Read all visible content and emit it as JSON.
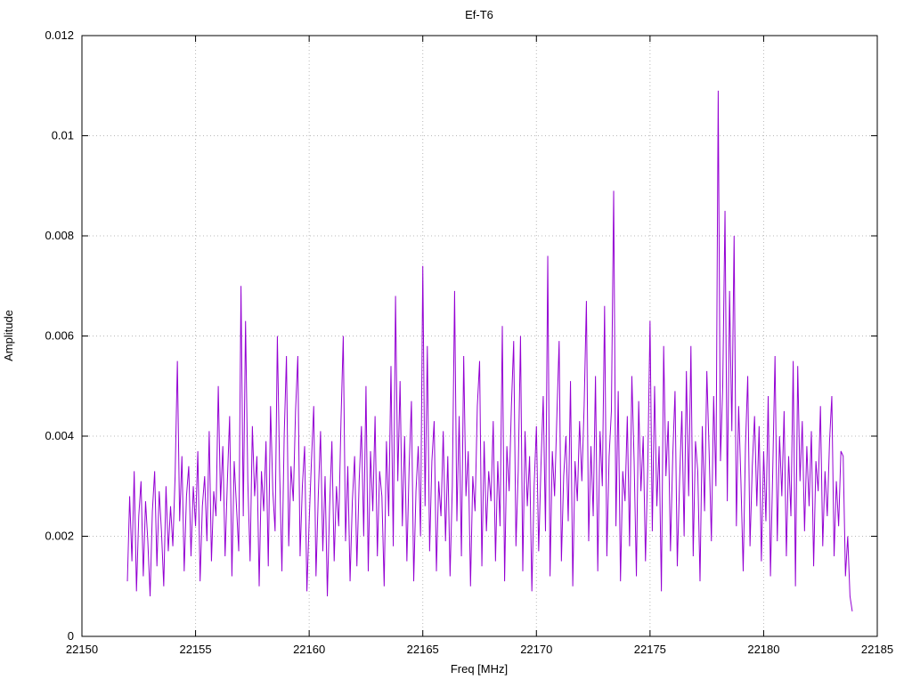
{
  "chart_data": {
    "type": "line",
    "title": "Ef-T6",
    "xlabel": "Freq [MHz]",
    "ylabel": "Amplitude",
    "xlim": [
      22150,
      22185
    ],
    "ylim": [
      0,
      0.012
    ],
    "xticks": [
      22150,
      22155,
      22160,
      22165,
      22170,
      22175,
      22180,
      22185
    ],
    "xtick_labels": [
      "22150",
      "22155",
      "22160",
      "22165",
      "22170",
      "22175",
      "22180",
      "22185"
    ],
    "yticks": [
      0,
      0.002,
      0.004,
      0.006,
      0.008,
      0.01,
      0.012
    ],
    "ytick_labels": [
      "0",
      "0.002",
      "0.004",
      "0.006",
      "0.008",
      "0.01",
      "0.012"
    ],
    "grid": true,
    "legend": "none",
    "line_color": "#9400d3",
    "grid_color": "#b8b8b8",
    "axis_color": "#000000",
    "x_start": 22152.0,
    "x_step": 0.1,
    "values": [
      0.0011,
      0.0028,
      0.0015,
      0.0033,
      0.0009,
      0.0024,
      0.0031,
      0.0012,
      0.0027,
      0.0019,
      0.0008,
      0.0025,
      0.0033,
      0.0014,
      0.0029,
      0.0021,
      0.001,
      0.003,
      0.0017,
      0.0026,
      0.0018,
      0.0032,
      0.0055,
      0.0023,
      0.0036,
      0.0013,
      0.0028,
      0.0034,
      0.0016,
      0.003,
      0.0022,
      0.0037,
      0.0011,
      0.0026,
      0.0032,
      0.0019,
      0.0041,
      0.0015,
      0.0029,
      0.0024,
      0.005,
      0.0027,
      0.0038,
      0.0016,
      0.0031,
      0.0044,
      0.0012,
      0.0035,
      0.0026,
      0.0017,
      0.007,
      0.0024,
      0.0063,
      0.0031,
      0.0015,
      0.0042,
      0.0028,
      0.0036,
      0.001,
      0.0033,
      0.0025,
      0.0039,
      0.0014,
      0.0046,
      0.0029,
      0.0021,
      0.006,
      0.0033,
      0.0013,
      0.004,
      0.0056,
      0.0018,
      0.0034,
      0.0027,
      0.0045,
      0.0056,
      0.0016,
      0.003,
      0.0038,
      0.0009,
      0.0023,
      0.0035,
      0.0046,
      0.0012,
      0.0028,
      0.0041,
      0.0017,
      0.0032,
      0.0008,
      0.0026,
      0.0039,
      0.0015,
      0.003,
      0.0022,
      0.0043,
      0.006,
      0.0019,
      0.0034,
      0.0011,
      0.0027,
      0.0036,
      0.0014,
      0.0031,
      0.0042,
      0.002,
      0.005,
      0.0013,
      0.0037,
      0.0025,
      0.0044,
      0.0016,
      0.0033,
      0.0028,
      0.001,
      0.0039,
      0.0024,
      0.0054,
      0.0018,
      0.0068,
      0.0031,
      0.0051,
      0.0022,
      0.004,
      0.0015,
      0.0034,
      0.0047,
      0.0011,
      0.0029,
      0.0038,
      0.002,
      0.0074,
      0.0026,
      0.0058,
      0.0017,
      0.0035,
      0.0043,
      0.0013,
      0.0031,
      0.0024,
      0.0041,
      0.0019,
      0.0036,
      0.0012,
      0.003,
      0.0069,
      0.0023,
      0.0044,
      0.0016,
      0.0056,
      0.0028,
      0.0037,
      0.001,
      0.0032,
      0.0025,
      0.0046,
      0.0055,
      0.0014,
      0.0039,
      0.0021,
      0.0033,
      0.0027,
      0.0043,
      0.0015,
      0.0035,
      0.0022,
      0.0062,
      0.0011,
      0.0038,
      0.0029,
      0.0046,
      0.0059,
      0.0018,
      0.0033,
      0.006,
      0.0013,
      0.0041,
      0.0026,
      0.0036,
      0.0009,
      0.003,
      0.0042,
      0.0017,
      0.0034,
      0.0048,
      0.0021,
      0.0076,
      0.0012,
      0.0037,
      0.0028,
      0.0044,
      0.0059,
      0.0015,
      0.0032,
      0.004,
      0.0023,
      0.0051,
      0.001,
      0.0035,
      0.0027,
      0.0043,
      0.0031,
      0.0046,
      0.0067,
      0.0019,
      0.0038,
      0.0024,
      0.0052,
      0.0013,
      0.0041,
      0.003,
      0.0066,
      0.0016,
      0.0036,
      0.0045,
      0.0089,
      0.0022,
      0.0049,
      0.0011,
      0.0033,
      0.0027,
      0.0044,
      0.0018,
      0.0052,
      0.0035,
      0.0012,
      0.0047,
      0.0029,
      0.004,
      0.0015,
      0.0034,
      0.0063,
      0.0021,
      0.005,
      0.0026,
      0.0038,
      0.0009,
      0.0058,
      0.0032,
      0.0043,
      0.0017,
      0.0036,
      0.0049,
      0.0014,
      0.0031,
      0.0045,
      0.002,
      0.0053,
      0.0028,
      0.0058,
      0.0016,
      0.0039,
      0.0033,
      0.0011,
      0.0042,
      0.0025,
      0.0053,
      0.0037,
      0.0019,
      0.0048,
      0.003,
      0.0109,
      0.0035,
      0.005,
      0.0085,
      0.0027,
      0.0069,
      0.0041,
      0.008,
      0.0022,
      0.0046,
      0.0031,
      0.0013,
      0.0038,
      0.0052,
      0.0018,
      0.0034,
      0.0044,
      0.0026,
      0.0042,
      0.0015,
      0.0037,
      0.0023,
      0.0048,
      0.0012,
      0.0033,
      0.0056,
      0.0019,
      0.004,
      0.0028,
      0.0045,
      0.0016,
      0.0036,
      0.0024,
      0.0055,
      0.001,
      0.0054,
      0.0031,
      0.0043,
      0.0021,
      0.0038,
      0.0026,
      0.0041,
      0.0014,
      0.0035,
      0.0029,
      0.0046,
      0.0018,
      0.0033,
      0.0024,
      0.0039,
      0.0048,
      0.0016,
      0.0031,
      0.0022,
      0.0037,
      0.0036,
      0.0012,
      0.002,
      0.0008,
      0.0005
    ]
  }
}
